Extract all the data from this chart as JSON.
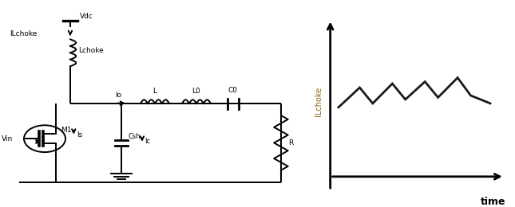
{
  "background_color": "#ffffff",
  "fig_width": 6.45,
  "fig_height": 2.6,
  "dpi": 100,
  "circuit": {
    "vdc_label": "Vdc",
    "lchoke_label": "Lchoke",
    "ilchoke_label": "ILchoke",
    "m1_label": "M1",
    "vin_label": "Vin",
    "is_label": "Is",
    "csh_label": "Csh",
    "ic_label": "Ic",
    "io_label": "Io",
    "l_label": "L",
    "l0_label": "L0",
    "c0_label": "C0",
    "r_label": "R"
  },
  "waveform": {
    "xlabel": "time",
    "ylabel": "ILchoke",
    "x_data": [
      0.05,
      0.18,
      0.26,
      0.38,
      0.46,
      0.58,
      0.66,
      0.78,
      0.86,
      0.98
    ],
    "y_data": [
      0.42,
      0.52,
      0.44,
      0.54,
      0.46,
      0.55,
      0.47,
      0.57,
      0.48,
      0.44
    ],
    "line_color": "#1a1a1a",
    "line_width": 2.0,
    "axis_color": "#000000",
    "xlabel_fontsize": 9,
    "ylabel_fontsize": 7
  }
}
